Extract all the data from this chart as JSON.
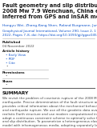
{
  "title": "Fault geometry and slip distribution of the\n2008 Mw 7.9 Wenchuan, China earthquake,\ninferred from GPS and InSAR measurements",
  "authors": "Hongyu Wei, Zhang-Kang Shen, Roland Burgmann, Junhao Sun, Min Wang",
  "journal_line1": "Geophysical Journal International, Volume 290, Issue 2, 1 February",
  "journal_line2": "2022, Pages 7–8, doi: https://doi.org/10.1093/gji/ggac045.1",
  "published": "Published",
  "date": "04 November 2022",
  "article_history_label": "Article history",
  "history_items": [
    "Early View",
    "PDF",
    "Cite"
  ],
  "permissions_label": "Permissions",
  "share_label": "Share",
  "summary_label": "SUMMARY",
  "summary_text": "We revisit the problem of coseismic rupture of the 2008 Mw 7.9 Wenchuan\nearthquake. Precise determination of the fault structure and slip distribution\nprovides critical information about the mechanical behaviour of the fault system\nand earthquake rupture. We use all the geodetic data available, craft a more\nrealistic Earth structure and use modern computational inversion methods, and\nadopt a continuous constraint scheme to optimally solve for the fault geometry\nand slip distribution. To parametrize a heterogeneous elastic earthquake finite-fault\nmodel with inhomogeneous media, adopting separately layered elastic structure\nmodels on both sides of the Northeast fault significantly improves data fitting.",
  "bg_color": "#ffffff",
  "title_color": "#1a1a1a",
  "author_color": "#1155cc",
  "journal_color": "#1155cc",
  "text_color": "#444444",
  "label_color": "#111111",
  "summary_color": "#111111",
  "title_fontsize": 4.8,
  "author_fontsize": 3.2,
  "journal_fontsize": 3.0,
  "body_fontsize": 3.0,
  "summary_label_fontsize": 4.2,
  "summary_text_fontsize": 2.9,
  "line_color": "#aaaaaa",
  "heavy_line_color": "#666666"
}
